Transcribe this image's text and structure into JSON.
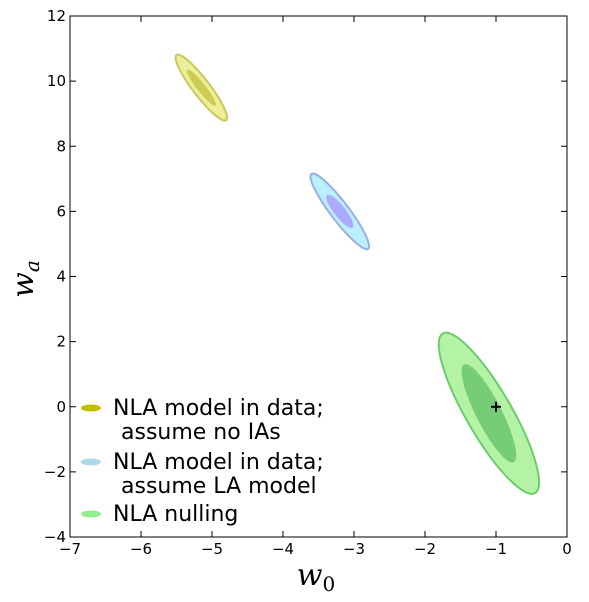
{
  "chart_data": {
    "type": "scatter",
    "title": "",
    "xlabel": "w",
    "xlabel_sub": "0",
    "ylabel": "w",
    "ylabel_sub": "a",
    "xlim": [
      -7,
      0
    ],
    "ylim": [
      -4,
      12
    ],
    "xticks": [
      -7,
      -6,
      -5,
      -4,
      -3,
      -2,
      -1,
      0
    ],
    "yticks": [
      -4,
      -2,
      0,
      2,
      4,
      6,
      8,
      10,
      12
    ],
    "xtick_labels": [
      "−7",
      "−6",
      "−5",
      "−4",
      "−3",
      "−2",
      "−1",
      "0"
    ],
    "ytick_labels": [
      "−4",
      "−2",
      "0",
      "2",
      "4",
      "6",
      "8",
      "10",
      "12"
    ],
    "grid": false,
    "legend_position": "lower-left",
    "fiducial_marker": {
      "x": -1,
      "y": 0
    },
    "series": [
      {
        "name": "NLA model in data;",
        "name_line2": "assume no IAs",
        "legend_color": "#bfbf00",
        "outer_color": "#eeee99",
        "outer_edge": "#c8c860",
        "inner_color": "#cccc55",
        "center": [
          -5.15,
          9.8
        ],
        "outer_endpoints": [
          [
            -5.5,
            10.8
          ],
          [
            -4.8,
            8.8
          ]
        ],
        "outer_semi_minor": 0.12,
        "inner_endpoints": [
          [
            -5.35,
            10.35
          ],
          [
            -4.95,
            9.25
          ]
        ],
        "inner_semi_minor": 0.06
      },
      {
        "name": "NLA model in data;",
        "name_line2": "assume LA model",
        "legend_color": "#add8e6",
        "outer_color": "#bbeeff",
        "outer_edge": "#9ab0e0",
        "inner_color": "#aaaaff",
        "center": [
          -3.2,
          6.0
        ],
        "outer_endpoints": [
          [
            -3.6,
            7.15
          ],
          [
            -2.8,
            4.85
          ]
        ],
        "outer_semi_minor": 0.13,
        "inner_endpoints": [
          [
            -3.38,
            6.5
          ],
          [
            -3.02,
            5.5
          ]
        ],
        "inner_semi_minor": 0.08
      },
      {
        "name": "NLA nulling",
        "legend_color": "#90ee90",
        "outer_color": "#b4f2a6",
        "outer_edge": "#6ccc6c",
        "inner_color": "#77cc77",
        "center": [
          -1.1,
          -0.2
        ],
        "outer_endpoints": [
          [
            -1.75,
            2.25
          ],
          [
            -0.45,
            -2.65
          ]
        ],
        "outer_semi_minor": 0.32,
        "inner_endpoints": [
          [
            -1.45,
            1.3
          ],
          [
            -0.75,
            -1.7
          ]
        ],
        "inner_semi_minor": 0.18
      }
    ]
  }
}
